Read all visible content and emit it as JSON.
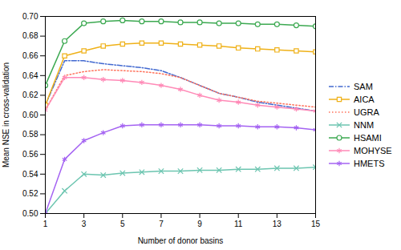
{
  "chart_data": {
    "type": "line",
    "xlabel": "Number of donor basins",
    "ylabel": "Mean NSE in cross-validation",
    "x": [
      1,
      2,
      3,
      4,
      5,
      6,
      7,
      8,
      9,
      10,
      11,
      12,
      13,
      14,
      15
    ],
    "series": [
      {
        "name": "SAM",
        "marker": "none",
        "line_style": "dashdot",
        "values": [
          0.61,
          0.655,
          0.655,
          0.652,
          0.65,
          0.648,
          0.645,
          0.638,
          0.63,
          0.622,
          0.618,
          0.613,
          0.61,
          0.607,
          0.604
        ]
      },
      {
        "name": "AICA",
        "marker": "square",
        "line_style": "solid",
        "values": [
          0.61,
          0.66,
          0.665,
          0.67,
          0.672,
          0.673,
          0.673,
          0.672,
          0.671,
          0.67,
          0.668,
          0.667,
          0.666,
          0.665,
          0.664
        ]
      },
      {
        "name": "UGRA",
        "marker": "none",
        "line_style": "dotted",
        "values": [
          0.605,
          0.64,
          0.644,
          0.646,
          0.645,
          0.644,
          0.642,
          0.638,
          0.63,
          0.622,
          0.618,
          0.614,
          0.612,
          0.61,
          0.608
        ]
      },
      {
        "name": "NNM",
        "marker": "x",
        "line_style": "solid",
        "values": [
          0.5,
          0.523,
          0.54,
          0.539,
          0.541,
          0.542,
          0.543,
          0.543,
          0.544,
          0.544,
          0.545,
          0.545,
          0.546,
          0.546,
          0.547
        ]
      },
      {
        "name": "HSAMI",
        "marker": "circle",
        "line_style": "solid",
        "values": [
          0.63,
          0.675,
          0.693,
          0.695,
          0.696,
          0.695,
          0.695,
          0.694,
          0.694,
          0.693,
          0.693,
          0.692,
          0.692,
          0.691,
          0.69
        ]
      },
      {
        "name": "MOHYSE",
        "marker": "asterisk",
        "line_style": "solid",
        "values": [
          0.605,
          0.638,
          0.638,
          0.636,
          0.635,
          0.633,
          0.63,
          0.626,
          0.62,
          0.615,
          0.613,
          0.61,
          0.608,
          0.606,
          0.604
        ]
      },
      {
        "name": "HMETS",
        "marker": "asterisk",
        "line_style": "solid",
        "values": [
          0.5,
          0.555,
          0.574,
          0.582,
          0.589,
          0.59,
          0.59,
          0.59,
          0.59,
          0.589,
          0.589,
          0.588,
          0.588,
          0.587,
          0.585
        ]
      }
    ],
    "xlim": [
      1,
      15
    ],
    "xticks": [
      1,
      3,
      5,
      7,
      9,
      11,
      13,
      15
    ],
    "ylim": [
      0.5,
      0.7
    ],
    "yticks": [
      {
        "value": 0.5,
        "label": "0.50"
      },
      0.52,
      0.54,
      0.56,
      0.58,
      {
        "value": 0.6,
        "label": "0.60"
      },
      0.62,
      0.64,
      0.66,
      0.68,
      {
        "value": 0.7,
        "label": "0.70"
      }
    ],
    "legend": "right"
  }
}
